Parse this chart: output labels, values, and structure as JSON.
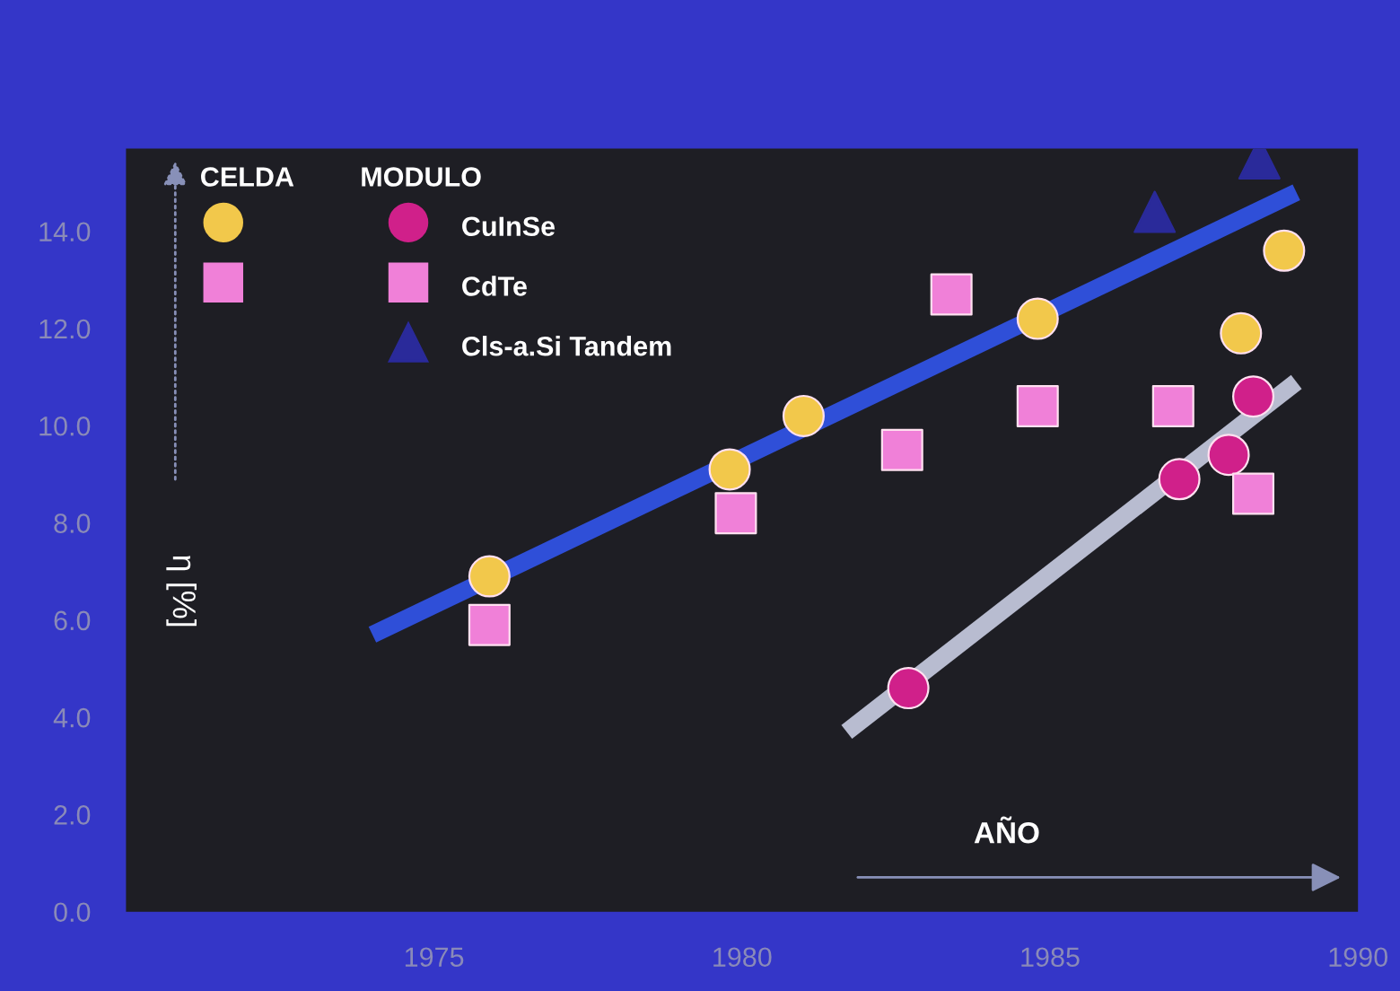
{
  "chart_data": {
    "type": "scatter",
    "xlabel": "AÑO",
    "ylabel": "η [%]",
    "annotations": [
      "CELDA",
      "MODULO"
    ],
    "xlim": [
      1970,
      1990
    ],
    "xticks": [
      1975,
      1980,
      1985,
      1990
    ],
    "ylim": [
      0,
      15.7
    ],
    "yticks": [
      {
        "value": 0,
        "label": "0.0"
      },
      {
        "value": 2,
        "label": "2.0"
      },
      {
        "value": 4,
        "label": "4.0"
      },
      {
        "value": 6,
        "label": "6.0"
      },
      {
        "value": 8,
        "label": "8.0"
      },
      {
        "value": 10,
        "label": "10.0"
      },
      {
        "value": 12,
        "label": "12.0"
      },
      {
        "value": 14,
        "label": "14.0"
      }
    ],
    "grid": false,
    "legend": "top left",
    "series": [
      {
        "name": "CuInSe",
        "color": "#d0208a",
        "marker": "circle",
        "x": [
          1982.7,
          1987.1,
          1987.9,
          1988.3
        ],
        "values": [
          4.6,
          8.9,
          9.4,
          10.6
        ]
      },
      {
        "name": "CdTe",
        "color": "#f080d8",
        "marker": "square",
        "x": [
          1982.6,
          1987.0,
          1988.3
        ],
        "values": [
          9.5,
          10.4,
          8.6
        ]
      },
      {
        "name": "Cls-a.Si Tandem",
        "color": "#2a2a9a",
        "marker": "triangle",
        "x": [
          1986.7,
          1988.4
        ],
        "values": [
          14.4,
          15.5
        ]
      },
      {
        "color": "#f2c84b",
        "marker": "circle",
        "x": [
          1975.9,
          1979.8,
          1981.0,
          1984.8,
          1988.1,
          1988.8
        ],
        "values": [
          6.9,
          9.1,
          10.2,
          12.2,
          11.9,
          13.6
        ]
      },
      {
        "color": "#f080d8",
        "marker": "square",
        "x": [
          1975.9,
          1979.9,
          1983.4,
          1984.8
        ],
        "values": [
          5.9,
          8.2,
          12.7,
          10.4
        ]
      },
      {
        "type": "line",
        "color": "#2f4fd8",
        "x": [
          1974.0,
          1989.0
        ],
        "values": [
          5.7,
          14.8
        ]
      },
      {
        "type": "line",
        "color": "#b8bcd0",
        "x": [
          1981.7,
          1989.0
        ],
        "values": [
          3.7,
          10.9
        ]
      }
    ]
  }
}
